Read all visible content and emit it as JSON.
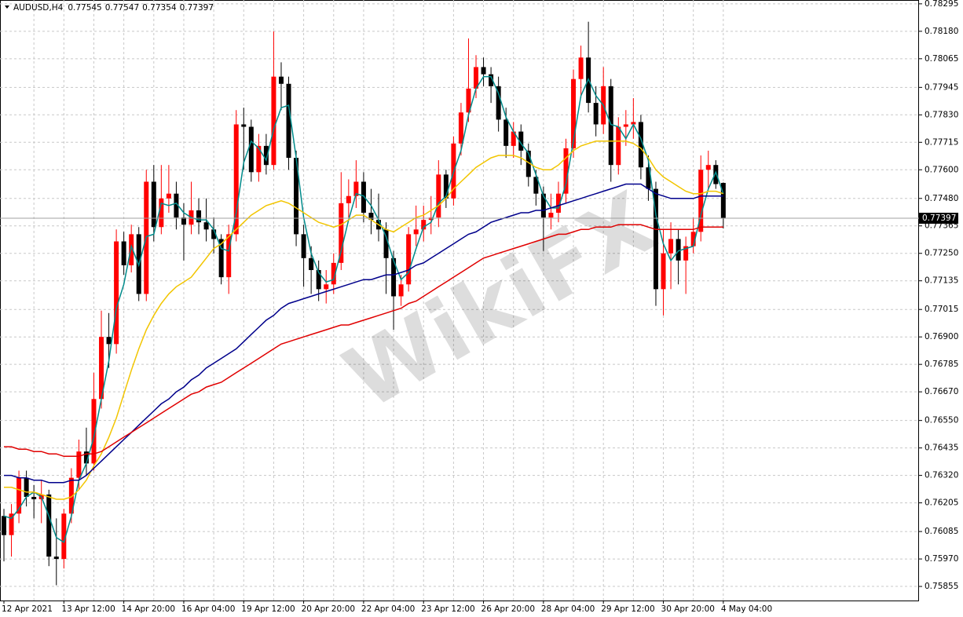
{
  "chart_data": {
    "type": "candlestick",
    "title": "AUDUSD,H4",
    "watermark": "WikiFX",
    "categories": [
      "12 Apr 2021",
      null,
      null,
      null,
      null,
      null,
      null,
      null,
      "13 Apr 12:00",
      null,
      null,
      null,
      null,
      null,
      null,
      null,
      "14 Apr 20:00",
      null,
      null,
      null,
      null,
      null,
      null,
      null,
      "16 Apr 04:00",
      null,
      null,
      null,
      null,
      null,
      null,
      null,
      "19 Apr 12:00",
      null,
      null,
      null,
      null,
      null,
      null,
      null,
      "20 Apr 20:00",
      null,
      null,
      null,
      null,
      null,
      null,
      null,
      "22 Apr 04:00",
      null,
      null,
      null,
      null,
      null,
      null,
      null,
      "23 Apr 12:00",
      null,
      null,
      null,
      null,
      null,
      null,
      null,
      "26 Apr 20:00",
      null,
      null,
      null,
      null,
      null,
      null,
      null,
      "28 Apr 04:00",
      null,
      null,
      null,
      null,
      null,
      null,
      null,
      "29 Apr 12:00",
      null,
      null,
      null,
      null,
      null,
      null,
      null,
      "30 Apr 20:00",
      null,
      null,
      null,
      null,
      null,
      null,
      null,
      "4 May 04:00"
    ],
    "open": [
      0.7615,
      0.7607,
      0.7616,
      0.7631,
      0.7623,
      0.7622,
      0.7624,
      0.7598,
      0.7597,
      0.7616,
      0.7631,
      0.7642,
      0.7637,
      0.7664,
      0.769,
      0.7687,
      0.773,
      0.772,
      0.7733,
      0.7708,
      0.7755,
      0.7736,
      0.7748,
      0.775,
      0.774,
      0.7737,
      0.7743,
      0.7738,
      0.7735,
      0.7731,
      0.7715,
      0.7733,
      0.7779,
      0.7778,
      0.7759,
      0.777,
      0.7762,
      0.7799,
      0.7796,
      0.7765,
      0.7733,
      0.7723,
      0.7718,
      0.771,
      0.7712,
      0.7721,
      0.7746,
      0.7749,
      0.7755,
      0.7742,
      0.7739,
      0.7735,
      0.7723,
      0.7707,
      0.7712,
      0.7733,
      0.7735,
      0.7739,
      0.774,
      0.7758,
      0.7748,
      0.7771,
      0.7784,
      0.7794,
      0.7803,
      0.78,
      0.7795,
      0.7781,
      0.777,
      0.7776,
      0.7768,
      0.7757,
      0.775,
      0.774,
      0.7742,
      0.775,
      0.7769,
      0.7798,
      0.7807,
      0.7788,
      0.7779,
      0.7795,
      0.7762,
      0.7778,
      0.7779,
      0.778,
      0.7761,
      0.7752,
      0.771,
      0.7725,
      0.7731,
      0.7722,
      0.7728,
      0.7734,
      0.776,
      0.7762,
      0.77545
    ],
    "high": [
      0.7618,
      0.762,
      0.7634,
      0.7634,
      0.7628,
      0.763,
      0.7626,
      0.7614,
      0.7618,
      0.7635,
      0.7647,
      0.7652,
      0.7675,
      0.7701,
      0.77,
      0.7735,
      0.7734,
      0.7737,
      0.7736,
      0.776,
      0.7762,
      0.7762,
      0.7762,
      0.7755,
      0.7746,
      0.7755,
      0.7748,
      0.7748,
      0.774,
      0.7733,
      0.7737,
      0.7785,
      0.7786,
      0.7781,
      0.7775,
      0.7775,
      0.7818,
      0.7805,
      0.7799,
      0.7768,
      0.7737,
      0.7728,
      0.7722,
      0.7718,
      0.7725,
      0.7759,
      0.7756,
      0.7764,
      0.7759,
      0.7752,
      0.775,
      0.7738,
      0.7726,
      0.7716,
      0.7736,
      0.7745,
      0.7745,
      0.7749,
      0.7764,
      0.776,
      0.7774,
      0.7788,
      0.7815,
      0.7808,
      0.7807,
      0.7803,
      0.7799,
      0.7786,
      0.778,
      0.7779,
      0.7771,
      0.776,
      0.7753,
      0.775,
      0.7755,
      0.7773,
      0.7802,
      0.7812,
      0.7822,
      0.7795,
      0.7803,
      0.7798,
      0.7782,
      0.7785,
      0.779,
      0.7783,
      0.7766,
      0.7755,
      0.7735,
      0.7738,
      0.7735,
      0.7732,
      0.774,
      0.7766,
      0.7768,
      0.7764,
      0.77547
    ],
    "low": [
      0.7596,
      0.7598,
      0.7612,
      0.7619,
      0.7614,
      0.7612,
      0.7594,
      0.7586,
      0.7593,
      0.7612,
      0.7626,
      0.7632,
      0.7634,
      0.766,
      0.7677,
      0.7683,
      0.7716,
      0.7717,
      0.7705,
      0.7705,
      0.773,
      0.7733,
      0.7742,
      0.7735,
      0.7722,
      0.7733,
      0.7733,
      0.773,
      0.7725,
      0.7712,
      0.7708,
      0.773,
      0.776,
      0.7755,
      0.7755,
      0.7758,
      0.776,
      0.7785,
      0.776,
      0.7728,
      0.7711,
      0.7708,
      0.7705,
      0.7704,
      0.7708,
      0.7718,
      0.774,
      0.7744,
      0.7738,
      0.7733,
      0.773,
      0.7708,
      0.7693,
      0.7703,
      0.7709,
      0.7728,
      0.773,
      0.7733,
      0.7736,
      0.7744,
      0.7745,
      0.7766,
      0.778,
      0.779,
      0.7795,
      0.7788,
      0.7776,
      0.7765,
      0.7765,
      0.7762,
      0.7753,
      0.7745,
      0.7726,
      0.7735,
      0.7738,
      0.7746,
      0.7765,
      0.779,
      0.7784,
      0.7774,
      0.7775,
      0.7755,
      0.7758,
      0.777,
      0.7773,
      0.7756,
      0.7747,
      0.7703,
      0.7699,
      0.771,
      0.7712,
      0.7708,
      0.7725,
      0.773,
      0.7752,
      0.7752,
      0.77354
    ],
    "close": [
      0.7607,
      0.7616,
      0.7631,
      0.7623,
      0.7622,
      0.7624,
      0.7598,
      0.7597,
      0.7616,
      0.7631,
      0.7642,
      0.7637,
      0.7664,
      0.769,
      0.7687,
      0.773,
      0.772,
      0.7733,
      0.7708,
      0.7755,
      0.7736,
      0.7748,
      0.775,
      0.774,
      0.7737,
      0.7743,
      0.7738,
      0.7735,
      0.7731,
      0.7715,
      0.7733,
      0.7779,
      0.7778,
      0.7759,
      0.777,
      0.7762,
      0.7799,
      0.7796,
      0.7765,
      0.7733,
      0.7723,
      0.7718,
      0.771,
      0.7712,
      0.7721,
      0.7746,
      0.7749,
      0.7755,
      0.7742,
      0.7739,
      0.7735,
      0.7723,
      0.7707,
      0.7712,
      0.7733,
      0.7735,
      0.7739,
      0.774,
      0.7758,
      0.7748,
      0.7771,
      0.7784,
      0.7794,
      0.7803,
      0.78,
      0.7795,
      0.7781,
      0.777,
      0.7776,
      0.7768,
      0.7757,
      0.775,
      0.774,
      0.7742,
      0.775,
      0.7769,
      0.7798,
      0.7807,
      0.7788,
      0.7779,
      0.7795,
      0.7762,
      0.7778,
      0.7779,
      0.778,
      0.7761,
      0.7752,
      0.771,
      0.7725,
      0.7731,
      0.7722,
      0.7728,
      0.7734,
      0.776,
      0.7762,
      0.7754,
      0.77397
    ],
    "up_color": "#ff0000",
    "down_color": "#000000",
    "series": [
      {
        "color": "#008b8b",
        "values": [
          0.7615,
          0.7614,
          0.7618,
          0.7623,
          0.7625,
          0.7623,
          0.7615,
          0.7606,
          0.7604,
          0.7615,
          0.763,
          0.7637,
          0.7648,
          0.7664,
          0.768,
          0.7702,
          0.7712,
          0.7728,
          0.772,
          0.7732,
          0.7733,
          0.7746,
          0.7745,
          0.7746,
          0.7742,
          0.774,
          0.7739,
          0.7739,
          0.7735,
          0.7727,
          0.7726,
          0.7742,
          0.7763,
          0.7772,
          0.7769,
          0.7764,
          0.7777,
          0.7786,
          0.7787,
          0.7765,
          0.774,
          0.7725,
          0.7717,
          0.7713,
          0.7714,
          0.7726,
          0.7739,
          0.775,
          0.7749,
          0.7745,
          0.7739,
          0.7732,
          0.7722,
          0.7714,
          0.7717,
          0.7727,
          0.7736,
          0.7738,
          0.7746,
          0.7749,
          0.7759,
          0.7768,
          0.7783,
          0.7794,
          0.7799,
          0.7799,
          0.7792,
          0.7782,
          0.7776,
          0.7771,
          0.7767,
          0.7758,
          0.7749,
          0.7744,
          0.7744,
          0.7754,
          0.7772,
          0.7791,
          0.7798,
          0.7791,
          0.7787,
          0.7779,
          0.7778,
          0.7773,
          0.7779,
          0.7773,
          0.7764,
          0.7741,
          0.7729,
          0.7722,
          0.7726,
          0.7727,
          0.7728,
          0.7741,
          0.7752,
          0.7759,
          0.775
        ]
      },
      {
        "color": "#f2c500",
        "values": [
          0.7627,
          0.7627,
          0.7626,
          0.7625,
          0.7625,
          0.7624,
          0.7623,
          0.7622,
          0.7622,
          0.7623,
          0.7626,
          0.763,
          0.7636,
          0.7641,
          0.7648,
          0.7656,
          0.7666,
          0.7676,
          0.7685,
          0.7693,
          0.7699,
          0.7704,
          0.7708,
          0.7711,
          0.7713,
          0.7715,
          0.7719,
          0.7723,
          0.7727,
          0.7729,
          0.7732,
          0.7735,
          0.7738,
          0.7741,
          0.7743,
          0.7745,
          0.7746,
          0.7747,
          0.7746,
          0.7744,
          0.7742,
          0.774,
          0.7738,
          0.7737,
          0.7736,
          0.7737,
          0.7739,
          0.7741,
          0.7741,
          0.7739,
          0.7737,
          0.7735,
          0.7734,
          0.7736,
          0.7738,
          0.774,
          0.7741,
          0.7743,
          0.7745,
          0.7748,
          0.7752,
          0.7755,
          0.7758,
          0.7761,
          0.7763,
          0.7765,
          0.7766,
          0.7766,
          0.7766,
          0.7765,
          0.7763,
          0.7761,
          0.776,
          0.776,
          0.7762,
          0.7765,
          0.7768,
          0.777,
          0.7771,
          0.7772,
          0.7772,
          0.7772,
          0.7772,
          0.7772,
          0.7771,
          0.7769,
          0.7765,
          0.776,
          0.7757,
          0.7755,
          0.7753,
          0.7751,
          0.775,
          0.775,
          0.7751,
          0.7751,
          0.775
        ]
      },
      {
        "color": "#00008b",
        "values": [
          0.7632,
          0.7632,
          0.7631,
          0.7631,
          0.763,
          0.763,
          0.7629,
          0.7629,
          0.7629,
          0.763,
          0.763,
          0.7632,
          0.7635,
          0.7638,
          0.7641,
          0.7644,
          0.7647,
          0.765,
          0.7653,
          0.7656,
          0.7659,
          0.7662,
          0.7664,
          0.7667,
          0.7669,
          0.7672,
          0.7674,
          0.7677,
          0.7679,
          0.7681,
          0.7683,
          0.7685,
          0.7688,
          0.7691,
          0.7694,
          0.7697,
          0.7699,
          0.7702,
          0.7704,
          0.7705,
          0.7706,
          0.7707,
          0.7708,
          0.7709,
          0.771,
          0.7711,
          0.7712,
          0.7713,
          0.7714,
          0.7714,
          0.7715,
          0.7716,
          0.7716,
          0.7717,
          0.7718,
          0.772,
          0.7721,
          0.7723,
          0.7725,
          0.7727,
          0.7729,
          0.7731,
          0.7733,
          0.7734,
          0.7736,
          0.7738,
          0.7739,
          0.774,
          0.7741,
          0.7742,
          0.7742,
          0.7743,
          0.7743,
          0.7744,
          0.7745,
          0.7746,
          0.7747,
          0.7748,
          0.7749,
          0.775,
          0.7751,
          0.7752,
          0.7753,
          0.7754,
          0.7754,
          0.7754,
          0.7752,
          0.775,
          0.7749,
          0.7748,
          0.7748,
          0.7748,
          0.7748,
          0.7749,
          0.7749,
          0.7749,
          0.7749
        ]
      },
      {
        "color": "#e00000",
        "values": [
          0.7644,
          0.7644,
          0.7643,
          0.7643,
          0.7642,
          0.7642,
          0.7641,
          0.7641,
          0.764,
          0.764,
          0.764,
          0.7641,
          0.7641,
          0.7642,
          0.7644,
          0.7646,
          0.7648,
          0.765,
          0.7652,
          0.7654,
          0.7656,
          0.7658,
          0.766,
          0.7662,
          0.7664,
          0.7666,
          0.7667,
          0.7669,
          0.767,
          0.7671,
          0.7673,
          0.7675,
          0.7677,
          0.7679,
          0.7681,
          0.7683,
          0.7685,
          0.7687,
          0.7688,
          0.7689,
          0.769,
          0.7691,
          0.7692,
          0.7693,
          0.7694,
          0.7695,
          0.7695,
          0.7696,
          0.7697,
          0.7698,
          0.7699,
          0.77,
          0.7701,
          0.7702,
          0.7704,
          0.7705,
          0.7707,
          0.7709,
          0.7711,
          0.7713,
          0.7715,
          0.7717,
          0.7719,
          0.7721,
          0.7723,
          0.7724,
          0.7725,
          0.7726,
          0.7727,
          0.7728,
          0.7729,
          0.773,
          0.7731,
          0.7732,
          0.7733,
          0.7733,
          0.7734,
          0.7735,
          0.7735,
          0.7736,
          0.7736,
          0.7736,
          0.7737,
          0.7737,
          0.7737,
          0.7737,
          0.7736,
          0.7735,
          0.7735,
          0.7735,
          0.7735,
          0.7735,
          0.7735,
          0.7736,
          0.7736,
          0.7736,
          0.7736
        ]
      }
    ],
    "ylim": [
      0.75796,
      0.78311
    ],
    "yticks": [
      {
        "value": 0.78295,
        "label": "0.78295"
      },
      {
        "value": 0.7818,
        "label": "0.78180"
      },
      {
        "value": 0.78065,
        "label": "0.78065"
      },
      {
        "value": 0.77945,
        "label": "0.77945"
      },
      {
        "value": 0.7783,
        "label": "0.77830"
      },
      {
        "value": 0.77715,
        "label": "0.77715"
      },
      {
        "value": 0.776,
        "label": "0.77600"
      },
      {
        "value": 0.7748,
        "label": "0.77480"
      },
      {
        "value": 0.77365,
        "label": "0.77365"
      },
      {
        "value": 0.7725,
        "label": "0.77250"
      },
      {
        "value": 0.77135,
        "label": "0.77135"
      },
      {
        "value": 0.77015,
        "label": "0.77015"
      },
      {
        "value": 0.769,
        "label": "0.76900"
      },
      {
        "value": 0.76785,
        "label": "0.76785"
      },
      {
        "value": 0.7667,
        "label": "0.76670"
      },
      {
        "value": 0.7655,
        "label": "0.76550"
      },
      {
        "value": 0.76435,
        "label": "0.76435"
      },
      {
        "value": 0.7632,
        "label": "0.76320"
      },
      {
        "value": 0.76205,
        "label": "0.76205"
      },
      {
        "value": 0.76085,
        "label": "0.76085"
      },
      {
        "value": 0.7597,
        "label": "0.75970"
      },
      {
        "value": 0.75855,
        "label": "0.75855"
      }
    ],
    "grid": true
  }
}
